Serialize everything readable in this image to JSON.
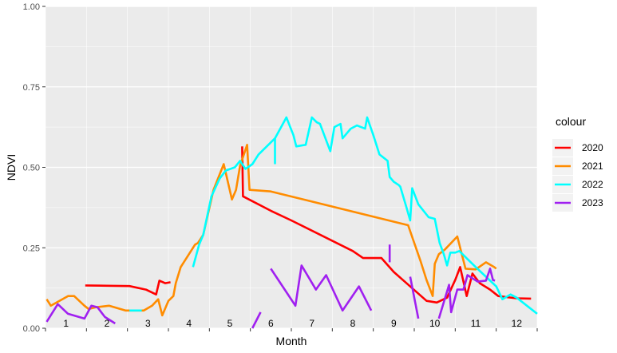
{
  "chart_data": {
    "type": "line",
    "xlabel": "Month",
    "ylabel": "NDVI",
    "ylim": [
      0,
      1
    ],
    "xlim": [
      0,
      12
    ],
    "y_ticks": [
      "0.00",
      "0.25",
      "0.50",
      "0.75",
      "1.00"
    ],
    "y_tick_values": [
      0,
      0.25,
      0.5,
      0.75,
      1.0
    ],
    "month_labels": [
      "1",
      "2",
      "3",
      "4",
      "5",
      "6",
      "7",
      "8",
      "9",
      "10",
      "11",
      "12"
    ],
    "grid": true,
    "panel_background": "#ebebeb",
    "legend": {
      "title": "colour",
      "position": "right"
    },
    "series": [
      {
        "name": "2020",
        "color": "#ff0000",
        "segments": [
          [
            [
              0.97,
              0.133
            ],
            [
              1.5,
              0.132
            ],
            [
              2.05,
              0.131
            ],
            [
              2.45,
              0.12
            ],
            [
              2.7,
              0.105
            ],
            [
              2.78,
              0.148
            ],
            [
              2.92,
              0.14
            ],
            [
              3.05,
              0.143
            ]
          ],
          [
            [
              4.8,
              0.565
            ],
            [
              4.82,
              0.41
            ],
            [
              5.5,
              0.365
            ],
            [
              6.0,
              0.335
            ],
            [
              7.5,
              0.24
            ],
            [
              7.75,
              0.218
            ],
            [
              8.2,
              0.218
            ],
            [
              8.5,
              0.175
            ],
            [
              9.3,
              0.085
            ],
            [
              9.55,
              0.08
            ],
            [
              9.8,
              0.095
            ],
            [
              10.0,
              0.15
            ],
            [
              10.12,
              0.19
            ],
            [
              10.28,
              0.1
            ],
            [
              10.42,
              0.17
            ],
            [
              10.6,
              0.14
            ],
            [
              10.85,
              0.12
            ],
            [
              11.05,
              0.1
            ],
            [
              11.5,
              0.093
            ],
            [
              11.85,
              0.092
            ]
          ]
        ]
      },
      {
        "name": "2021",
        "color": "#ff8c00",
        "segments": [
          [
            [
              0.03,
              0.09
            ],
            [
              0.13,
              0.07
            ],
            [
              0.55,
              0.1
            ],
            [
              0.7,
              0.1
            ],
            [
              0.95,
              0.07
            ],
            [
              1.05,
              0.06
            ],
            [
              1.22,
              0.065
            ],
            [
              1.55,
              0.07
            ],
            [
              1.95,
              0.055
            ],
            [
              2.4,
              0.055
            ],
            [
              2.6,
              0.07
            ],
            [
              2.75,
              0.09
            ],
            [
              2.85,
              0.04
            ],
            [
              3.0,
              0.085
            ],
            [
              3.12,
              0.1
            ],
            [
              3.18,
              0.14
            ],
            [
              3.3,
              0.19
            ],
            [
              3.5,
              0.23
            ],
            [
              3.65,
              0.26
            ],
            [
              3.72,
              0.265
            ],
            [
              3.85,
              0.29
            ],
            [
              4.1,
              0.43
            ],
            [
              4.35,
              0.51
            ],
            [
              4.55,
              0.4
            ],
            [
              4.65,
              0.43
            ],
            [
              4.75,
              0.505
            ],
            [
              4.92,
              0.57
            ],
            [
              4.98,
              0.43
            ],
            [
              5.5,
              0.425
            ],
            [
              8.85,
              0.32
            ],
            [
              9.15,
              0.21
            ],
            [
              9.3,
              0.15
            ],
            [
              9.45,
              0.1
            ],
            [
              9.5,
              0.2
            ],
            [
              9.6,
              0.23
            ],
            [
              9.75,
              0.245
            ],
            [
              10.05,
              0.285
            ],
            [
              10.25,
              0.185
            ],
            [
              10.5,
              0.183
            ],
            [
              10.75,
              0.205
            ],
            [
              10.95,
              0.19
            ],
            [
              11.0,
              0.185
            ]
          ]
        ]
      },
      {
        "name": "2022",
        "color": "#00ffff",
        "segments": [
          [
            [
              2.05,
              0.055
            ],
            [
              2.35,
              0.055
            ]
          ],
          [
            [
              3.6,
              0.19
            ],
            [
              3.75,
              0.26
            ],
            [
              3.85,
              0.29
            ],
            [
              4.05,
              0.41
            ],
            [
              4.25,
              0.465
            ],
            [
              4.4,
              0.49
            ],
            [
              4.62,
              0.5
            ],
            [
              4.75,
              0.52
            ],
            [
              4.88,
              0.495
            ],
            [
              5.05,
              0.51
            ],
            [
              5.2,
              0.54
            ],
            [
              5.6,
              0.59
            ],
            [
              5.6,
              0.51
            ]
          ],
          [
            [
              5.6,
              0.59
            ],
            [
              5.88,
              0.655
            ],
            [
              6.05,
              0.6
            ],
            [
              6.12,
              0.565
            ],
            [
              6.35,
              0.57
            ],
            [
              6.5,
              0.655
            ],
            [
              6.62,
              0.64
            ],
            [
              6.7,
              0.635
            ],
            [
              6.95,
              0.55
            ],
            [
              7.05,
              0.625
            ],
            [
              7.2,
              0.635
            ],
            [
              7.25,
              0.59
            ],
            [
              7.45,
              0.62
            ],
            [
              7.6,
              0.63
            ],
            [
              7.8,
              0.62
            ],
            [
              7.85,
              0.655
            ],
            [
              8.0,
              0.6
            ],
            [
              8.15,
              0.54
            ],
            [
              8.35,
              0.52
            ],
            [
              8.4,
              0.47
            ],
            [
              8.5,
              0.455
            ],
            [
              8.62,
              0.445
            ],
            [
              8.66,
              0.44
            ],
            [
              8.8,
              0.38
            ],
            [
              8.9,
              0.335
            ],
            [
              8.95,
              0.435
            ],
            [
              9.1,
              0.385
            ],
            [
              9.35,
              0.345
            ],
            [
              9.5,
              0.34
            ],
            [
              9.62,
              0.265
            ],
            [
              9.72,
              0.23
            ],
            [
              9.8,
              0.195
            ],
            [
              9.88,
              0.235
            ],
            [
              10.0,
              0.235
            ],
            [
              10.1,
              0.24
            ],
            [
              10.3,
              0.215
            ],
            [
              10.5,
              0.19
            ],
            [
              10.75,
              0.16
            ],
            [
              11.0,
              0.13
            ],
            [
              11.15,
              0.09
            ],
            [
              11.35,
              0.105
            ],
            [
              11.5,
              0.095
            ],
            [
              11.8,
              0.065
            ],
            [
              12.0,
              0.045
            ]
          ]
        ]
      },
      {
        "name": "2023",
        "color": "#a020f0",
        "segments": [
          [
            [
              0.03,
              0.02
            ],
            [
              0.3,
              0.075
            ],
            [
              0.55,
              0.045
            ],
            [
              0.95,
              0.03
            ],
            [
              1.12,
              0.07
            ],
            [
              1.27,
              0.065
            ],
            [
              1.45,
              0.035
            ],
            [
              1.7,
              0.015
            ]
          ],
          [
            [
              5.05,
              0.0
            ],
            [
              5.25,
              0.05
            ]
          ],
          [
            [
              5.5,
              0.185
            ],
            [
              6.1,
              0.07
            ],
            [
              6.25,
              0.195
            ],
            [
              6.6,
              0.12
            ],
            [
              6.85,
              0.165
            ],
            [
              7.25,
              0.055
            ],
            [
              7.65,
              0.13
            ],
            [
              7.95,
              0.055
            ]
          ],
          [
            [
              8.4,
              0.205
            ],
            [
              8.4,
              0.26
            ]
          ],
          [
            [
              8.9,
              0.16
            ],
            [
              9.1,
              0.03
            ]
          ],
          [
            [
              9.6,
              0.03
            ],
            [
              9.85,
              0.135
            ],
            [
              9.9,
              0.05
            ],
            [
              10.05,
              0.12
            ],
            [
              10.2,
              0.12
            ],
            [
              10.3,
              0.165
            ],
            [
              10.55,
              0.145
            ],
            [
              10.75,
              0.148
            ],
            [
              10.85,
              0.185
            ],
            [
              10.92,
              0.15
            ],
            [
              10.97,
              0.148
            ]
          ]
        ]
      }
    ]
  }
}
